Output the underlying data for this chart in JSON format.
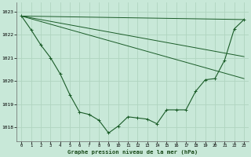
{
  "title": "Graphe pression niveau de la mer (hPa)",
  "bg_color": "#c8e8d8",
  "grid_color": "#b0d4c0",
  "line_color": "#1a5c28",
  "xlim": [
    -0.5,
    23.5
  ],
  "ylim": [
    1017.4,
    1023.4
  ],
  "yticks": [
    1018,
    1019,
    1020,
    1021,
    1022,
    1023
  ],
  "xticks": [
    0,
    1,
    2,
    3,
    4,
    5,
    6,
    7,
    8,
    9,
    10,
    11,
    12,
    13,
    14,
    15,
    16,
    17,
    18,
    19,
    20,
    21,
    22,
    23
  ],
  "curve_x": [
    0,
    1,
    2,
    3,
    4,
    5,
    6,
    7,
    8,
    9,
    10,
    11,
    12,
    13,
    14,
    15,
    16,
    17,
    18,
    19,
    20,
    21,
    22,
    23
  ],
  "curve_y": [
    1022.8,
    1022.2,
    1021.55,
    1021.0,
    1020.3,
    1019.4,
    1018.65,
    1018.55,
    1018.3,
    1017.75,
    1018.05,
    1018.45,
    1018.4,
    1018.35,
    1018.15,
    1018.75,
    1018.75,
    1018.75,
    1019.55,
    1020.05,
    1020.1,
    1020.9,
    1022.25,
    1022.65
  ],
  "line1_x": [
    0,
    23
  ],
  "line1_y": [
    1022.8,
    1022.65
  ],
  "line2_x": [
    0,
    23
  ],
  "line2_y": [
    1022.8,
    1021.05
  ],
  "line3_x": [
    0,
    23
  ],
  "line3_y": [
    1022.8,
    1020.1
  ]
}
